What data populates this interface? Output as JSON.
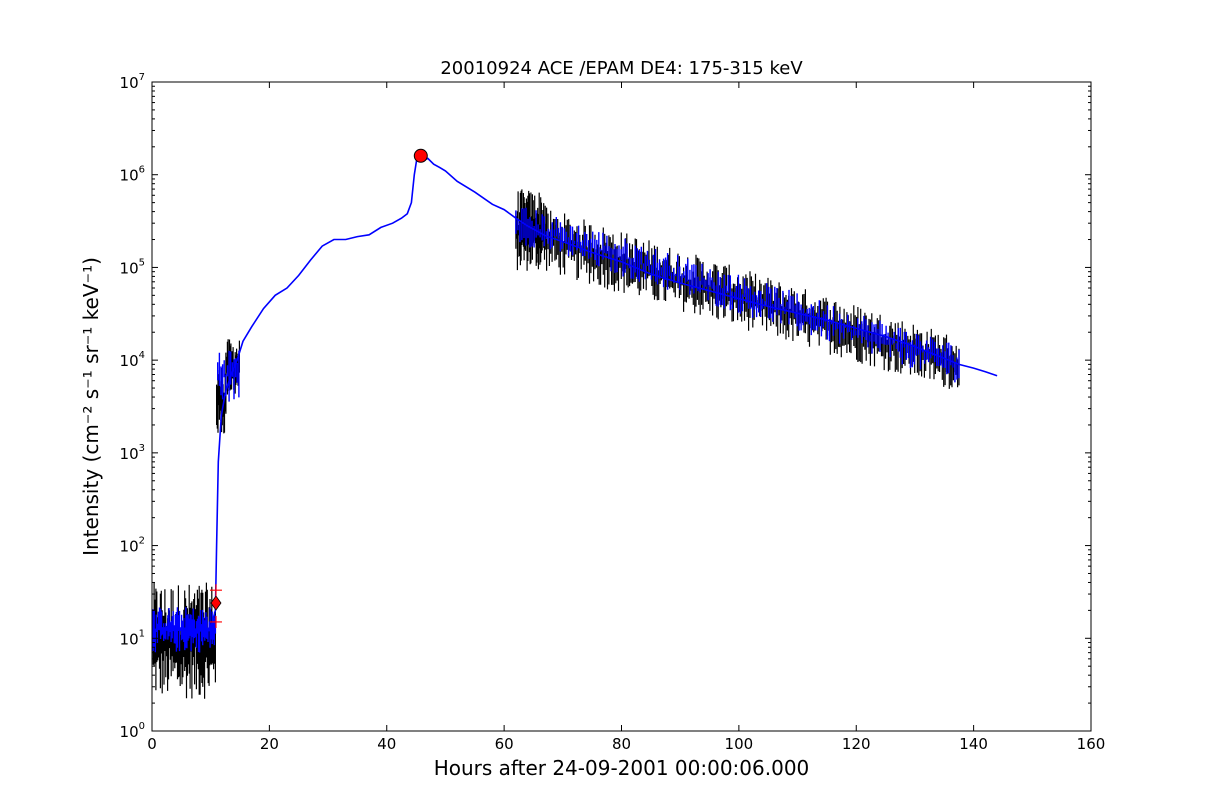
{
  "chart_data": {
    "type": "line",
    "title": "20010924 ACE /EPAM DE4: 175-315 keV",
    "xlabel": "Hours after 24-09-2001 00:00:06.000",
    "ylabel": "Intensity (cm⁻² s⁻¹ sr⁻¹ keV⁻¹)",
    "xlim": [
      0,
      160
    ],
    "ylim": [
      1,
      10000000
    ],
    "yscale": "log",
    "grid": false,
    "x_ticks": [
      {
        "value": 0,
        "label": "0"
      },
      {
        "value": 20,
        "label": "20"
      },
      {
        "value": 40,
        "label": "40"
      },
      {
        "value": 60,
        "label": "60"
      },
      {
        "value": 80,
        "label": "80"
      },
      {
        "value": 100,
        "label": "100"
      },
      {
        "value": 120,
        "label": "120"
      },
      {
        "value": 140,
        "label": "140"
      },
      {
        "value": 160,
        "label": "160"
      }
    ],
    "y_ticks": [
      {
        "value": 1,
        "base": "10",
        "exp": "0"
      },
      {
        "value": 10,
        "base": "10",
        "exp": "1"
      },
      {
        "value": 100,
        "base": "10",
        "exp": "2"
      },
      {
        "value": 1000,
        "base": "10",
        "exp": "3"
      },
      {
        "value": 10000,
        "base": "10",
        "exp": "4"
      },
      {
        "value": 100000,
        "base": "10",
        "exp": "5"
      },
      {
        "value": 1000000,
        "base": "10",
        "exp": "6"
      },
      {
        "value": 10000000,
        "base": "10",
        "exp": "7"
      }
    ],
    "series": [
      {
        "role": "raw",
        "color": "#000000",
        "segments": [
          {
            "x_start": 0.2,
            "x_end": 10.8,
            "low": 2.2,
            "high": 40,
            "spikes": 70
          },
          {
            "x_start": 11.0,
            "x_end": 12.6,
            "low": 1500,
            "high": 9000,
            "spikes": 14
          },
          {
            "x_start": 12.6,
            "x_end": 14.9,
            "low": 4000,
            "high": 17000,
            "spikes": 20
          },
          {
            "x_start": 62.0,
            "x_end": 67.0,
            "low": 90000,
            "high": 700000,
            "spikes": 40
          },
          {
            "x_start": 67.0,
            "x_end": 137.5,
            "low_start": 90000,
            "low_end": 4500,
            "high_start": 450000,
            "high_end": 18000,
            "spikes": 300
          }
        ]
      },
      {
        "role": "smoothed",
        "color": "#0000ff",
        "points": [
          [
            0.0,
            12
          ],
          [
            2.0,
            13
          ],
          [
            4.0,
            12
          ],
          [
            6.0,
            13
          ],
          [
            8.0,
            12
          ],
          [
            10.0,
            13
          ],
          [
            10.8,
            20
          ],
          [
            11.0,
            100
          ],
          [
            11.3,
            800
          ],
          [
            11.8,
            2500
          ],
          [
            12.5,
            4500
          ],
          [
            13.5,
            7000
          ],
          [
            14.5,
            10000
          ],
          [
            15.5,
            16000
          ],
          [
            17.0,
            23000
          ],
          [
            19.0,
            36000
          ],
          [
            21.0,
            50000
          ],
          [
            23.0,
            60000
          ],
          [
            25.0,
            82000
          ],
          [
            27.0,
            120000
          ],
          [
            29.0,
            170000
          ],
          [
            31.0,
            200000
          ],
          [
            33.0,
            200000
          ],
          [
            35.0,
            215000
          ],
          [
            37.0,
            225000
          ],
          [
            39.0,
            270000
          ],
          [
            41.0,
            300000
          ],
          [
            42.5,
            340000
          ],
          [
            43.5,
            380000
          ],
          [
            44.2,
            500000
          ],
          [
            44.7,
            1000000
          ],
          [
            45.2,
            1600000
          ],
          [
            45.6,
            1650000
          ],
          [
            46.0,
            1400000
          ],
          [
            47.0,
            1500000
          ],
          [
            48.0,
            1300000
          ],
          [
            49.0,
            1200000
          ],
          [
            50.0,
            1100000
          ],
          [
            52.0,
            850000
          ],
          [
            55.0,
            650000
          ],
          [
            58.0,
            480000
          ],
          [
            60.0,
            420000
          ],
          [
            62.0,
            340000
          ],
          [
            64.0,
            280000
          ],
          [
            67.0,
            220000
          ],
          [
            70.0,
            190000
          ],
          [
            75.0,
            145000
          ],
          [
            80.0,
            115000
          ],
          [
            85.0,
            85000
          ],
          [
            90.0,
            68000
          ],
          [
            95.0,
            56000
          ],
          [
            100.0,
            46000
          ],
          [
            105.0,
            38000
          ],
          [
            110.0,
            32000
          ],
          [
            115.0,
            27000
          ],
          [
            120.0,
            22000
          ],
          [
            125.0,
            18000
          ],
          [
            130.0,
            14000
          ],
          [
            135.0,
            10500
          ],
          [
            137.5,
            9000
          ],
          [
            140.0,
            8200
          ],
          [
            142.0,
            7500
          ],
          [
            144.0,
            6800
          ]
        ]
      }
    ],
    "markers": [
      {
        "name": "onset",
        "shape": "diamond",
        "color": "#ff0000",
        "x": 10.9,
        "y": 24
      },
      {
        "name": "onset-upper",
        "shape": "plus",
        "color": "#ff0000",
        "x": 10.9,
        "y": 33
      },
      {
        "name": "onset-lower",
        "shape": "plus",
        "color": "#ff0000",
        "x": 10.9,
        "y": 15
      },
      {
        "name": "peak",
        "shape": "circle",
        "color": "#ff0000",
        "x": 45.8,
        "y": 1600000
      }
    ]
  }
}
